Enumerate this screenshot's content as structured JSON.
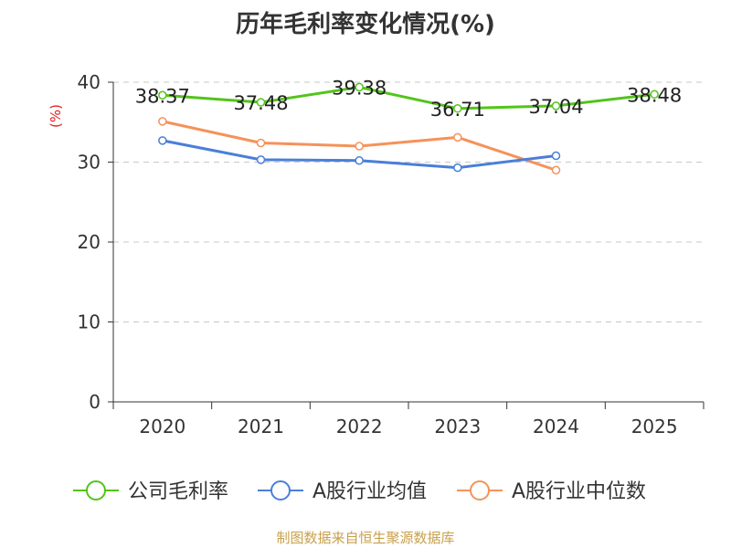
{
  "chart_data": {
    "type": "line",
    "title": "历年毛利率变化情况(%)",
    "ylabel": "(%)",
    "xlabel": "",
    "ylim": [
      0,
      40
    ],
    "yticks": [
      0,
      10,
      20,
      30,
      40
    ],
    "grid": true,
    "legend_position": "bottom",
    "categories": [
      "2020",
      "2021",
      "2022",
      "2023",
      "2024",
      "2025"
    ],
    "series": [
      {
        "name": "公司毛利率",
        "color": "#52c41a",
        "values": [
          38.37,
          37.48,
          39.38,
          36.71,
          37.04,
          38.48
        ],
        "labels": [
          "38.37",
          "37.48",
          "39.38",
          "36.71",
          "37.04",
          "38.48"
        ]
      },
      {
        "name": "A股行业均值",
        "color": "#4a7fd8",
        "values": [
          32.7,
          30.3,
          30.2,
          29.3,
          30.8,
          null
        ]
      },
      {
        "name": "A股行业中位数",
        "color": "#f5925a",
        "values": [
          35.1,
          32.4,
          32.0,
          33.1,
          29.0,
          null
        ]
      }
    ]
  },
  "source": "制图数据来自恒生聚源数据库"
}
